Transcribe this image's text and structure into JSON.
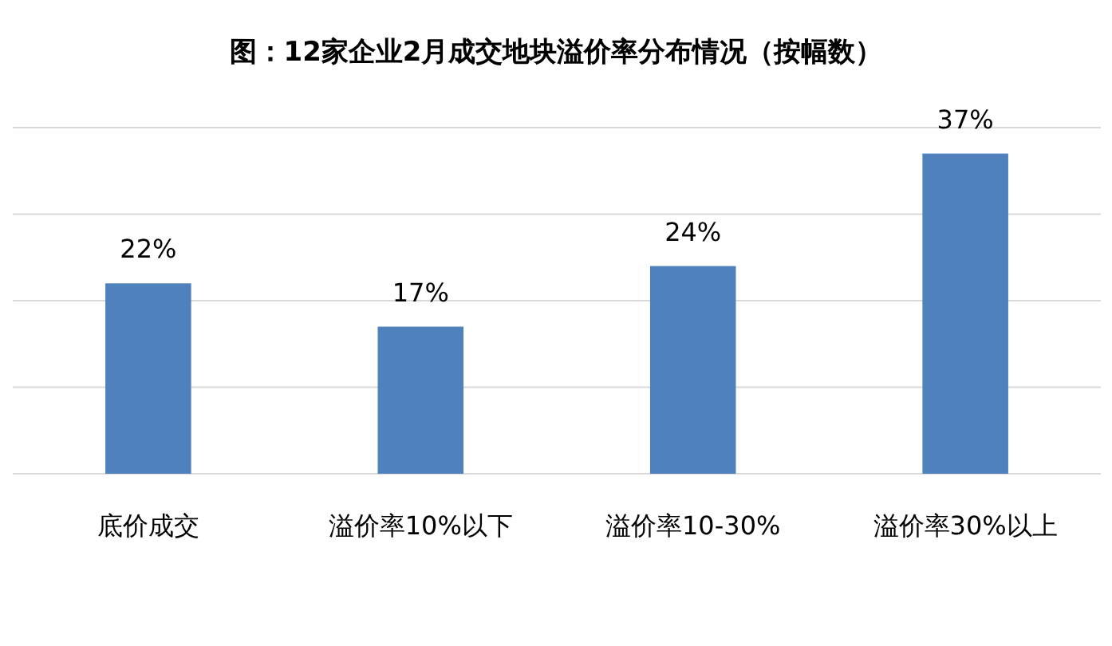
{
  "chart_data": {
    "type": "bar",
    "title": "图：12家企业2月成交地块溢价率分布情况（按幅数）",
    "categories": [
      "底价成交",
      "溢价率10%以下",
      "溢价率10-30%",
      "溢价率30%以上"
    ],
    "values": [
      22,
      17,
      24,
      37
    ],
    "value_labels": [
      "22%",
      "17%",
      "24%",
      "37%"
    ],
    "color": "#4f81bd",
    "ylim": [
      0,
      40
    ],
    "yticks": [
      {
        "value": 0,
        "label": null
      },
      {
        "value": 10,
        "label": null
      },
      {
        "value": 20,
        "label": null
      },
      {
        "value": 30,
        "label": null
      },
      {
        "value": 40,
        "label": null
      }
    ],
    "grid": "y",
    "tick_labels": "x"
  }
}
